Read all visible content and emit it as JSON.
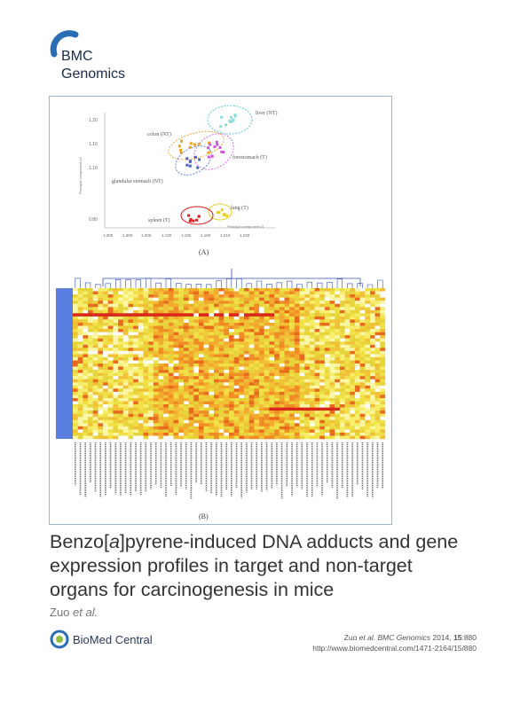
{
  "journal": {
    "line1": "BMC",
    "line2": "Genomics"
  },
  "figure": {
    "pca": {
      "panel_label": "(A)",
      "y_ticks": [
        "1.20",
        "1.10",
        "1.10",
        "0.80"
      ],
      "x_ticks": [
        "1.300",
        "1.300",
        "1.000",
        "1.130",
        "1.150",
        "1.150",
        "1.210",
        "1.240"
      ],
      "y_axis_label": "Principal component #2",
      "x_axis_label": "Principal component #1",
      "group_labels": [
        "liver (NT)",
        "colon (NT)",
        "forestomach (T)",
        "glandular stomach (NT)",
        "lung (T)",
        "spleen (T)"
      ]
    },
    "heatmap": {
      "panel_label": "(B)"
    }
  },
  "article": {
    "title_line1_a": "Benzo[",
    "title_line1_italic": "a",
    "title_line1_b": "]pyrene-induced DNA adducts and gene",
    "title_line2": "expression profiles in target and non-target",
    "title_line3": "organs for carcinogenesis in mice",
    "authors_name": "Zuo ",
    "authors_etal": "et al."
  },
  "footer": {
    "publisher_logo": "BioMed Central",
    "cite_name": "Zuo ",
    "cite_etal": "et al. BMC Genomics",
    "cite_year": " 2014, ",
    "cite_vol": "15",
    "cite_page": ":880",
    "url": "http://www.biomedcentral.com/1471-2164/15/880"
  },
  "colors": {
    "accent_blue": "#2a6db5",
    "heat_low": "#f2e94e",
    "heat_high": "#e03010",
    "dendrogram": "#3350b8"
  }
}
